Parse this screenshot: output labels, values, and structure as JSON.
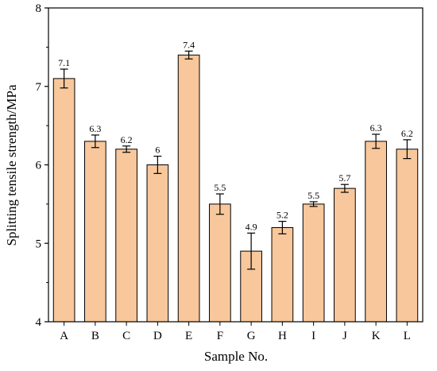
{
  "colors": {
    "bar_fill": "#F8C79B",
    "bar_stroke": "#000000",
    "axis": "#000000",
    "background": "#FFFFFF"
  },
  "chart_data": {
    "type": "bar",
    "title": "",
    "xlabel": "Sample No.",
    "ylabel": "Splitting tensile strength/MPa",
    "categories": [
      "A",
      "B",
      "C",
      "D",
      "E",
      "F",
      "G",
      "H",
      "I",
      "J",
      "K",
      "L"
    ],
    "values": [
      7.1,
      6.3,
      6.2,
      6,
      7.4,
      5.5,
      4.9,
      5.2,
      5.5,
      5.7,
      6.3,
      6.2
    ],
    "value_labels": [
      "7.1",
      "6.3",
      "6.2",
      "6",
      "7.4",
      "5.5",
      "4.9",
      "5.2",
      "5.5",
      "5.7",
      "6.3",
      "6.2"
    ],
    "error": [
      0.12,
      0.08,
      0.04,
      0.11,
      0.05,
      0.13,
      0.23,
      0.08,
      0.03,
      0.05,
      0.09,
      0.12
    ],
    "ylim": [
      4,
      8
    ],
    "yticks": [
      4,
      5,
      6,
      7,
      8
    ],
    "ytick_labels": [
      "4",
      "5",
      "6",
      "7",
      "8"
    ],
    "grid": false,
    "legend": "none"
  }
}
